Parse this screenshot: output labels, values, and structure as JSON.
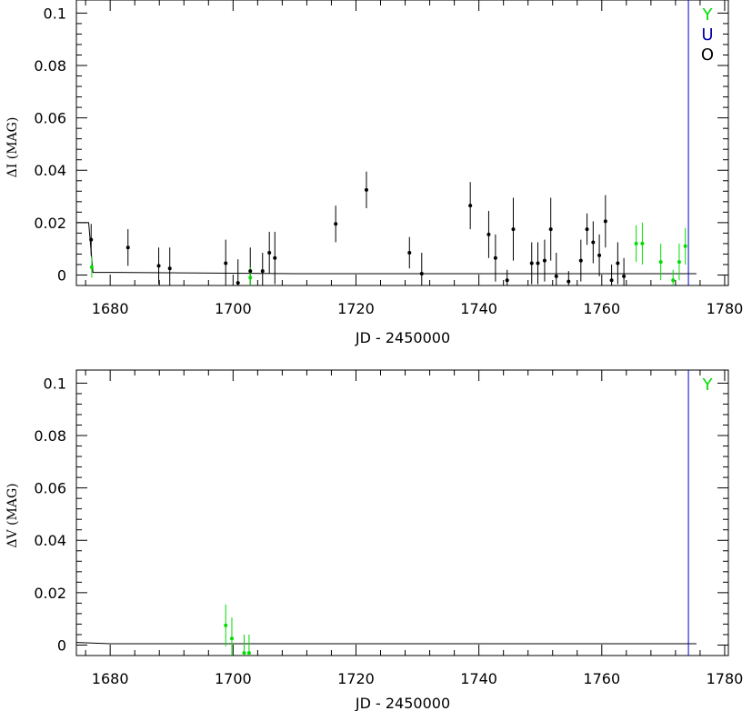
{
  "chart_data": [
    {
      "type": "scatter",
      "xlabel": "JD - 2450000",
      "ylabel": "ΔI (MAG)",
      "xlim": [
        1674.5,
        1780.6
      ],
      "ylim": [
        -0.004,
        0.105
      ],
      "xticks": [
        1680,
        1700,
        1720,
        1740,
        1760,
        1780
      ],
      "yticks": [
        0,
        0.02,
        0.04,
        0.06,
        0.08,
        0.1
      ],
      "xtick_labels": [
        "1680",
        "1700",
        "1720",
        "1740",
        "1760",
        "1780"
      ],
      "ytick_labels": [
        "0",
        "0.02",
        "0.04",
        "0.06",
        "0.08",
        "0.1"
      ],
      "legend": [
        "Y",
        "U",
        "O"
      ],
      "legend_colors": [
        "#00dd00",
        "#0000aa",
        "#000000"
      ],
      "vline_x": 1774.1,
      "series": [
        {
          "color": "#000000",
          "x": [
            1676.9,
            1682.9,
            1687.9,
            1689.7,
            1698.8,
            1700.8,
            1702.8,
            1704.8,
            1705.9,
            1706.8,
            1716.7,
            1721.7,
            1728.7,
            1730.7,
            1738.6,
            1741.6,
            1742.7,
            1744.6,
            1745.6,
            1748.6,
            1749.6,
            1750.7,
            1751.7,
            1752.6,
            1754.6,
            1756.6,
            1757.6,
            1758.6,
            1759.6,
            1760.6,
            1761.6,
            1762.6,
            1763.6
          ],
          "y": [
            0.0135,
            0.0105,
            0.0035,
            0.0025,
            0.0045,
            -0.003,
            0.0015,
            0.0015,
            0.0085,
            0.0065,
            0.0195,
            0.0325,
            0.0085,
            0.0005,
            0.0265,
            0.0155,
            0.0065,
            -0.002,
            0.0175,
            0.0045,
            0.0045,
            0.0055,
            0.0175,
            -0.0005,
            -0.0025,
            0.0055,
            0.0175,
            0.0125,
            0.0075,
            0.0205,
            -0.002,
            0.0045,
            -0.0005
          ],
          "err": [
            0.006,
            0.007,
            0.007,
            0.008,
            0.009,
            0.009,
            0.009,
            0.007,
            0.008,
            0.01,
            0.007,
            0.007,
            0.006,
            0.008,
            0.009,
            0.009,
            0.009,
            0.004,
            0.012,
            0.008,
            0.008,
            0.008,
            0.012,
            0.009,
            0.004,
            0.008,
            0.006,
            0.008,
            0.008,
            0.01,
            0.006,
            0.008,
            0.007
          ]
        },
        {
          "color": "#00dd00",
          "x": [
            1677.0,
            1702.8,
            1765.6,
            1766.6,
            1769.6,
            1771.6,
            1772.6,
            1773.6
          ],
          "y": [
            0.003,
            -0.001,
            0.012,
            0.012,
            0.005,
            -0.002,
            0.005,
            0.011
          ],
          "err": [
            0.004,
            0.004,
            0.007,
            0.008,
            0.007,
            0.004,
            0.007,
            0.007
          ]
        }
      ],
      "lines": [
        {
          "color": "#000000",
          "x": [
            1674.5,
            1676.5,
            1677.2,
            1680.0,
            1710.0,
            1775.4
          ],
          "y": [
            0.02,
            0.02,
            0.001,
            0.001,
            0.0005,
            0.0005
          ]
        }
      ]
    },
    {
      "type": "scatter",
      "xlabel": "JD - 2450000",
      "ylabel": "ΔV (MAG)",
      "xlim": [
        1674.5,
        1780.6
      ],
      "ylim": [
        -0.004,
        0.105
      ],
      "xticks": [
        1680,
        1700,
        1720,
        1740,
        1760,
        1780
      ],
      "yticks": [
        0,
        0.02,
        0.04,
        0.06,
        0.08,
        0.1
      ],
      "xtick_labels": [
        "1680",
        "1700",
        "1720",
        "1740",
        "1760",
        "1780"
      ],
      "ytick_labels": [
        "0",
        "0.02",
        "0.04",
        "0.06",
        "0.08",
        "0.1"
      ],
      "legend": [
        "Y"
      ],
      "legend_colors": [
        "#00dd00"
      ],
      "vline_x": 1774.1,
      "series": [
        {
          "color": "#00dd00",
          "x": [
            1698.8,
            1699.8,
            1701.8,
            1702.6
          ],
          "y": [
            0.0075,
            0.0025,
            -0.003,
            -0.003
          ],
          "err": [
            0.008,
            0.008,
            0.007,
            0.007
          ]
        }
      ],
      "lines": [
        {
          "color": "#000000",
          "x": [
            1674.5,
            1680.0,
            1775.4
          ],
          "y": [
            0.001,
            0.0005,
            0.0005
          ]
        }
      ]
    }
  ],
  "colors": {
    "vline": "#0000cc",
    "frame": "#000000"
  }
}
